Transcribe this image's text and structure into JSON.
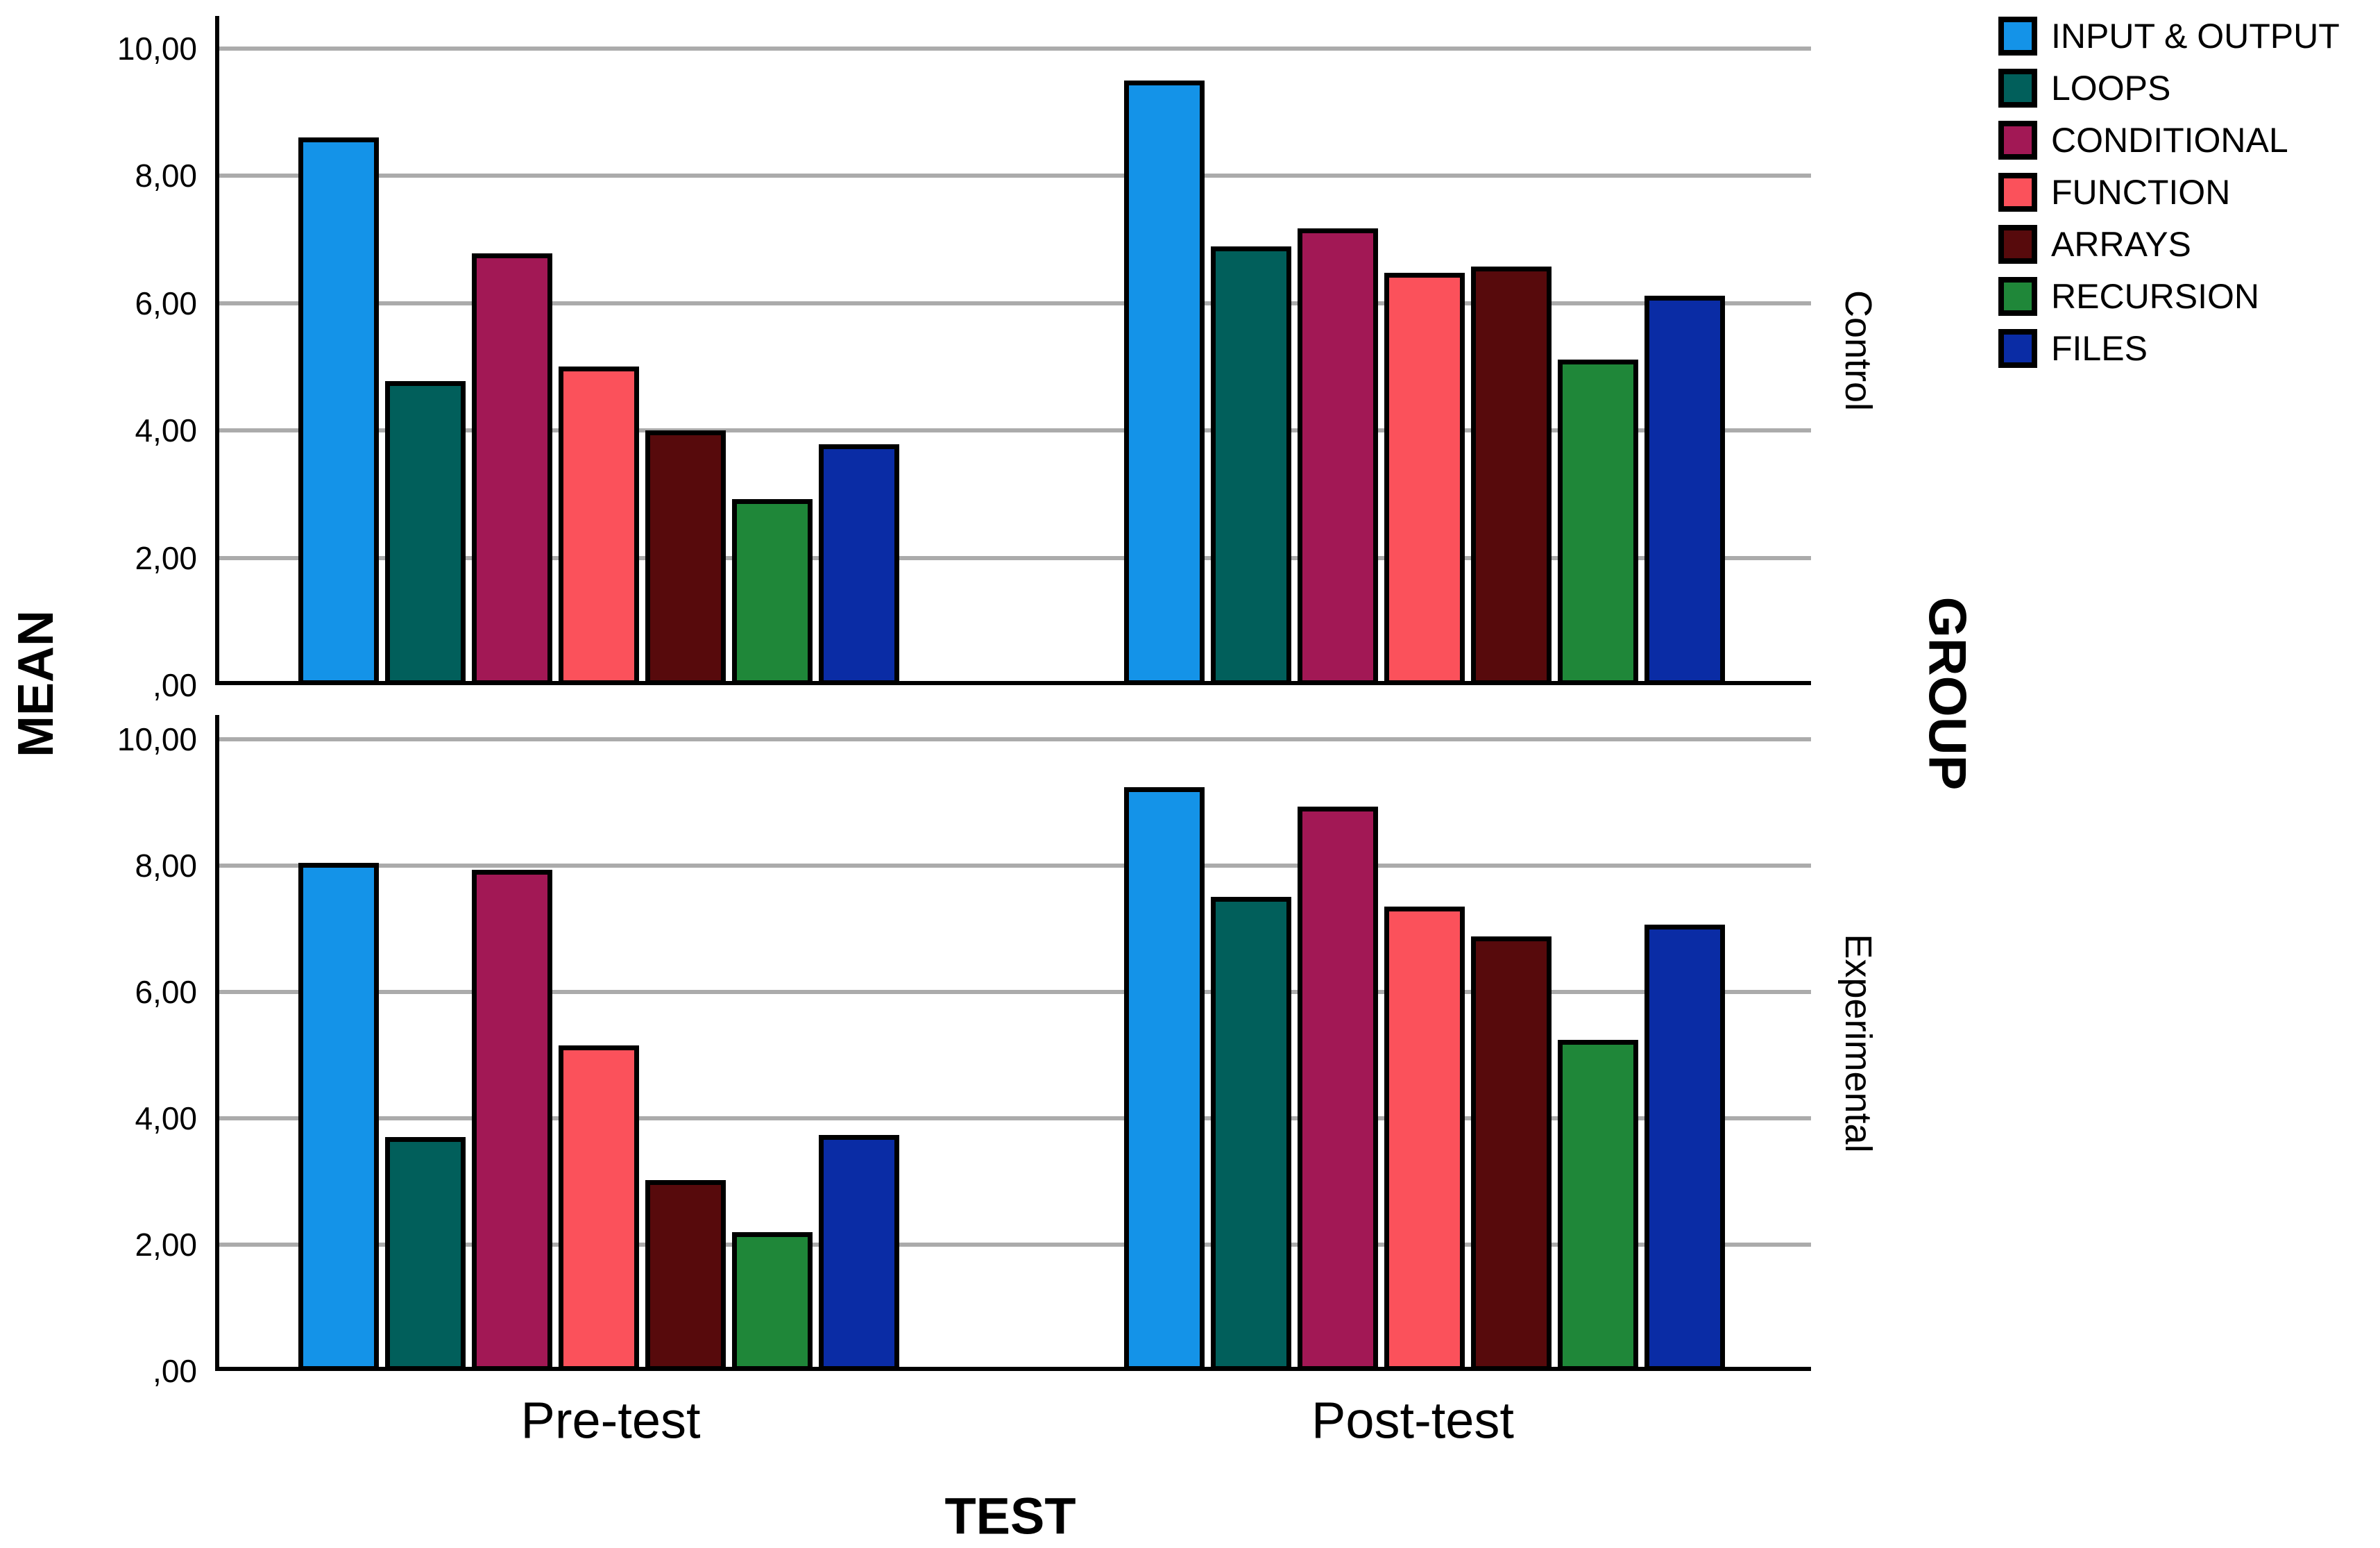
{
  "chart_data": {
    "type": "bar",
    "title": "",
    "xlabel": "TEST",
    "ylabel": "MEAN",
    "panel_axis_label": "GROUP",
    "panels": [
      "Control",
      "Experimental"
    ],
    "categories": [
      "Pre-test",
      "Post-test"
    ],
    "y_ticks": [
      {
        "value": 10,
        "label": "10,00"
      },
      {
        "value": 8,
        "label": "8,00"
      },
      {
        "value": 6,
        "label": "6,00"
      },
      {
        "value": 4,
        "label": "4,00"
      },
      {
        "value": 2,
        "label": "2,00"
      },
      {
        "value": 0,
        "label": ",00"
      }
    ],
    "ylim": [
      0,
      10.5
    ],
    "grid": true,
    "legend_position": "top-right",
    "gridline_color": "#ababab",
    "axis_color": "#000000",
    "series": [
      {
        "name": "INPUT & OUTPUT",
        "color": "#1493e8",
        "values": {
          "Control": [
            8.6,
            9.5
          ],
          "Experimental": [
            8.04,
            9.24
          ]
        }
      },
      {
        "name": "LOOPS",
        "color": "#015f5b",
        "values": {
          "Control": [
            4.78,
            6.89
          ],
          "Experimental": [
            3.7,
            7.5
          ]
        }
      },
      {
        "name": "CONDITIONAL",
        "color": "#a21855",
        "values": {
          "Control": [
            6.78,
            7.18
          ],
          "Experimental": [
            7.93,
            8.93
          ]
        }
      },
      {
        "name": "FUNCTION",
        "color": "#fb515b",
        "values": {
          "Control": [
            5.0,
            6.48
          ],
          "Experimental": [
            5.15,
            7.35
          ]
        }
      },
      {
        "name": "ARRAYS",
        "color": "#570a0c",
        "values": {
          "Control": [
            4.0,
            6.58
          ],
          "Experimental": [
            3.02,
            6.88
          ]
        }
      },
      {
        "name": "RECURSION",
        "color": "#1f8739",
        "values": {
          "Control": [
            2.92,
            5.11
          ],
          "Experimental": [
            2.2,
            5.24
          ]
        }
      },
      {
        "name": "FILES",
        "color": "#0a2ca5",
        "values": {
          "Control": [
            3.78,
            6.12
          ],
          "Experimental": [
            3.74,
            7.07
          ]
        }
      }
    ]
  }
}
